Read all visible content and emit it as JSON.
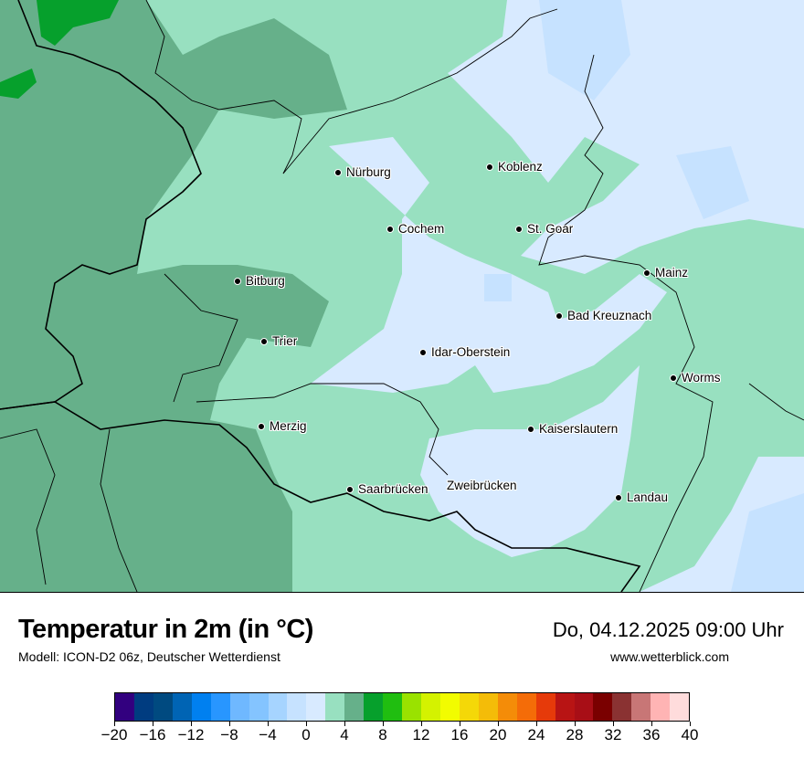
{
  "map": {
    "colors": {
      "cold_patch": "#c6e2ff",
      "base": "#d8eaff",
      "light_green": "#98e0c0",
      "dark_green": "#66b08a",
      "bright_green": "#06a02c"
    },
    "cities": [
      "Nürburg",
      "Koblenz",
      "Cochem",
      "St. Goar",
      "Bitburg",
      "Mainz",
      "Bad Kreuznach",
      "Trier",
      "Idar-Oberstein",
      "Worms",
      "Merzig",
      "Kaiserslautern",
      "Saarbrücken",
      "Zweibrücken",
      "Landau"
    ]
  },
  "footer": {
    "title": "Temperatur in 2m (in °C)",
    "model": "Modell: ICON-D2 06z, Deutscher Wetterdienst",
    "datetime": "Do, 04.12.2025 09:00 Uhr",
    "website": "www.wetterblick.com"
  },
  "legend": {
    "ticks": [
      "−20",
      "−16",
      "−12",
      "−8",
      "−4",
      "0",
      "4",
      "8",
      "12",
      "16",
      "20",
      "24",
      "28",
      "32",
      "36",
      "40"
    ],
    "colors": [
      "#32007f",
      "#003c80",
      "#004a80",
      "#0064b4",
      "#0080f0",
      "#2896ff",
      "#6fb8ff",
      "#84c4ff",
      "#a6d4ff",
      "#c6e2ff",
      "#d8eaff",
      "#98e0c0",
      "#66b08a",
      "#06a02c",
      "#20be10",
      "#9ae200",
      "#d4f200",
      "#f2fc00",
      "#f4d808",
      "#f4bc08",
      "#f48c08",
      "#f46c08",
      "#e63a0a",
      "#b81414",
      "#a80e16",
      "#7a0000",
      "#8a3232",
      "#c87676",
      "#ffb4b4",
      "#ffdcdc"
    ]
  }
}
